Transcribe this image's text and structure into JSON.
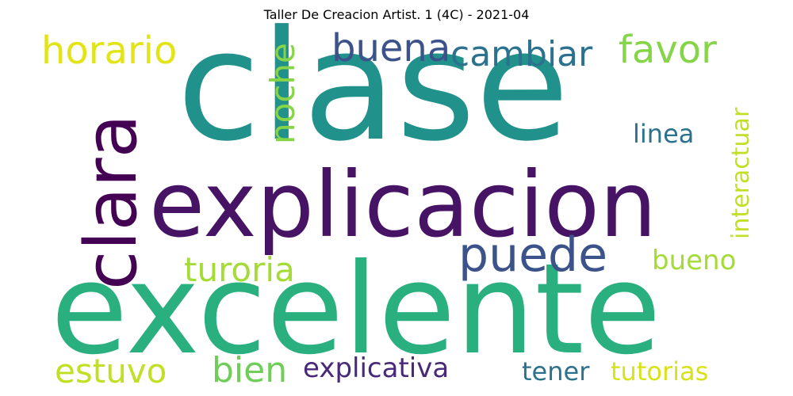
{
  "title": "Taller De Creacion Artist. 1 (4C) - 2021-04",
  "words": [
    {
      "text": "clase",
      "color": "#21918c"
    },
    {
      "text": "explicacion",
      "color": "#471365"
    },
    {
      "text": "excelente",
      "color": "#2ab07f"
    },
    {
      "text": "clara",
      "color": "#440154"
    },
    {
      "text": "horario",
      "color": "#e3e418"
    },
    {
      "text": "buena",
      "color": "#3b528b"
    },
    {
      "text": "cambiar",
      "color": "#2c728e"
    },
    {
      "text": "favor",
      "color": "#86d549"
    },
    {
      "text": "noche",
      "color": "#86d549"
    },
    {
      "text": "linea",
      "color": "#2c728e"
    },
    {
      "text": "interactuar",
      "color": "#c2df23"
    },
    {
      "text": "puede",
      "color": "#3b528b"
    },
    {
      "text": "turoria",
      "color": "#a5db36"
    },
    {
      "text": "bueno",
      "color": "#a5db36"
    },
    {
      "text": "estuvo",
      "color": "#c2df23"
    },
    {
      "text": "bien",
      "color": "#6ece58"
    },
    {
      "text": "explicativa",
      "color": "#482878"
    },
    {
      "text": "tener",
      "color": "#2c728e"
    },
    {
      "text": "tutorias",
      "color": "#d8e219"
    }
  ]
}
